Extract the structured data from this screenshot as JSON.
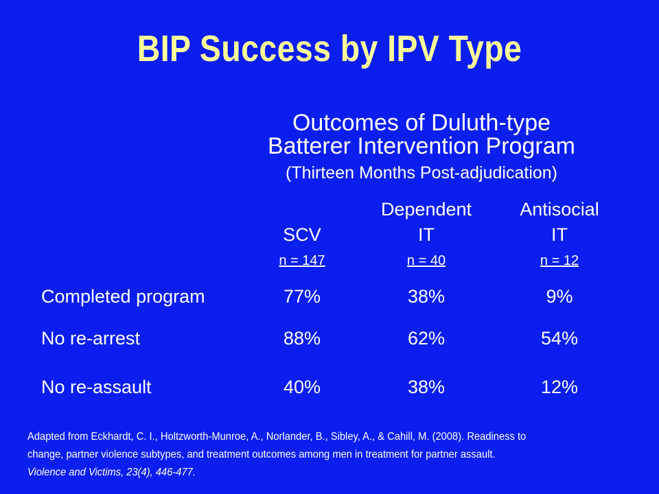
{
  "title": "BIP Success by IPV Type",
  "subtitle": {
    "line1": "Outcomes of Duluth-type",
    "line2": "Batterer Intervention Program",
    "line3": "(Thirteen Months Post-adjudication)"
  },
  "columns": [
    {
      "line1": "",
      "line2": "SCV",
      "n": "n = 147"
    },
    {
      "line1": "Dependent",
      "line2": "IT",
      "n": "n = 40"
    },
    {
      "line1": "Antisocial",
      "line2": "IT",
      "n": "n = 12"
    }
  ],
  "rows": [
    {
      "label": "Completed program",
      "values": [
        "77%",
        "38%",
        "9%"
      ]
    },
    {
      "label": "No re-arrest",
      "values": [
        "88%",
        "62%",
        "54%"
      ]
    },
    {
      "label": "No re-assault",
      "values": [
        "40%",
        "38%",
        "12%"
      ]
    }
  ],
  "citation": {
    "line1": "Adapted from Eckhardt, C. I., Holtzworth-Munroe, A., Norlander, B., Sibley, A., & Cahill, M. (2008). Readiness to",
    "line2": "change, partner violence subtypes, and treatment outcomes among men in treatment for partner assault.",
    "journal": "Violence and Victims, 23(4), 446-477."
  },
  "colors": {
    "background": "#0a1ef0",
    "title": "#ffff99",
    "text": "#ffffff"
  }
}
